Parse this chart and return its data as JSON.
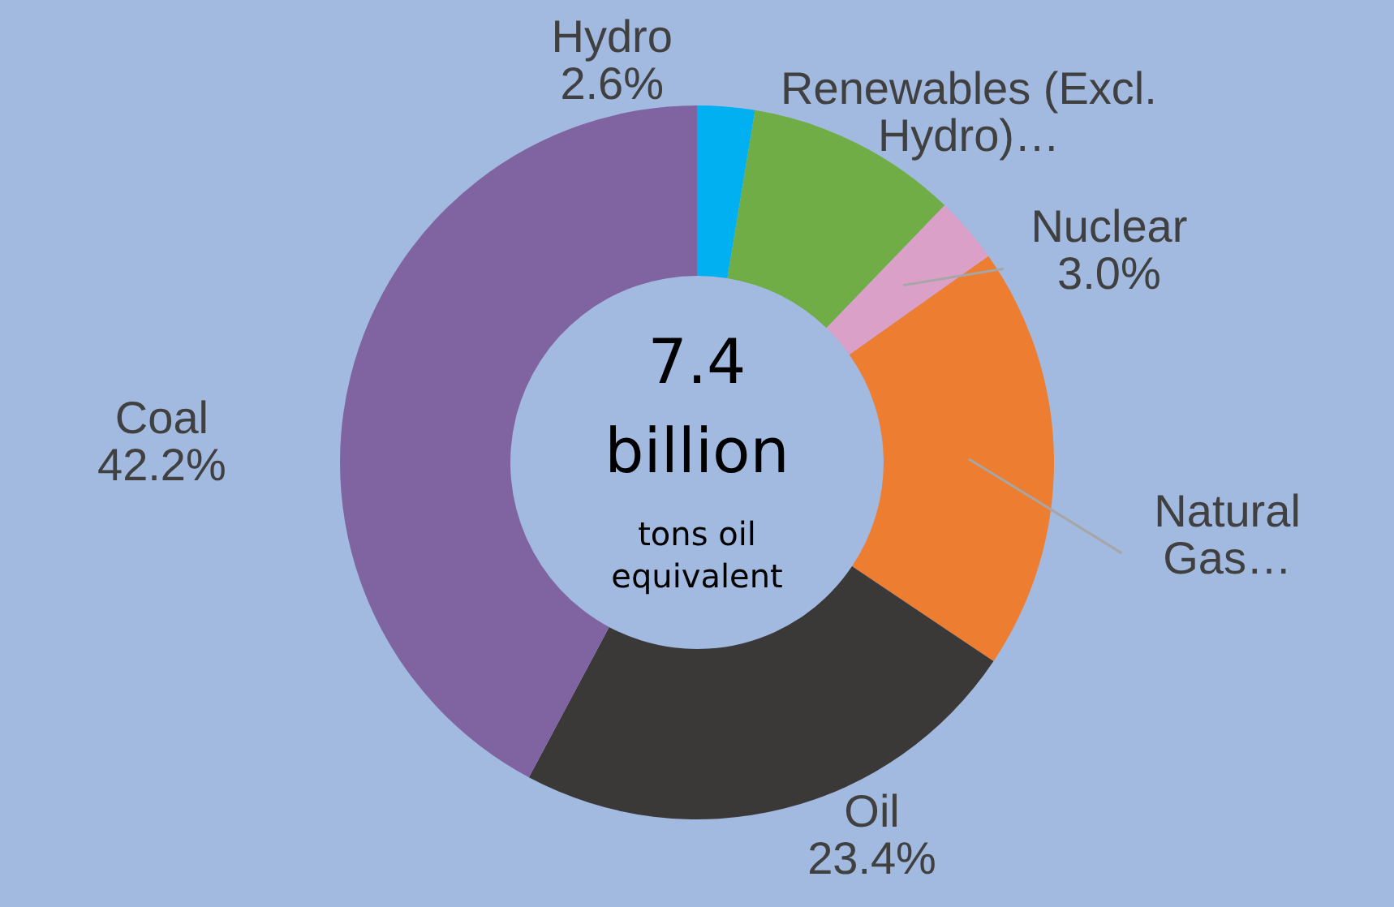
{
  "chart_data": {
    "type": "donut",
    "categories": [
      "Hydro",
      "Renewables (Excl. Hydro)…",
      "Nuclear",
      "Natural Gas…",
      "Oil",
      "Coal"
    ],
    "values": [
      2.6,
      9.6,
      3.0,
      19.2,
      23.4,
      42.2
    ],
    "colors": [
      "#00b0f0",
      "#70ad47",
      "#dba0c8",
      "#ed7d31",
      "#3b3838",
      "#8064a2"
    ],
    "value_labels": [
      "2.6%",
      null,
      "3.0%",
      null,
      "23.4%",
      "42.2%"
    ],
    "annotations": [
      "7.4",
      "billion",
      "tons oil equivalent"
    ],
    "legend": false
  }
}
